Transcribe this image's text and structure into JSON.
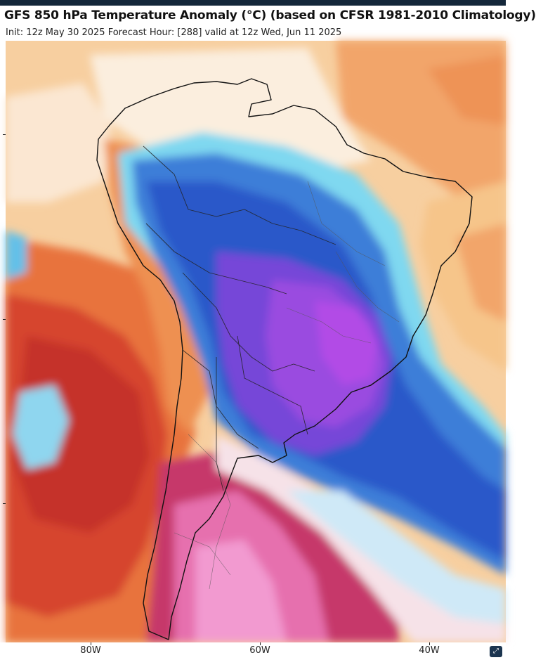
{
  "header": {
    "title": "GFS 850 hPa Temperature Anomaly (°C) (based on CFSR 1981-2010 Climatology)",
    "subtitle": "Init: 12z May 30 2025   Forecast Hour: [288]   valid at 12z Wed, Jun 11 2025"
  },
  "map": {
    "variable": "850 hPa temperature anomaly",
    "region": "South America",
    "x_axis_labels": [
      "80W",
      "60W",
      "40W"
    ]
  },
  "colors": {
    "cold_deep": "#b24ce6",
    "cold_blue": "#2a58c9",
    "cold_light": "#7fd8f0",
    "neutral": "#fbeede",
    "warm_light": "#f6c58a",
    "warm": "#e8733e",
    "warm_deep": "#c5302b",
    "warm_pink": "#e66fae",
    "borders": "#111111"
  },
  "ui": {
    "corner_icon": "expand-icon"
  }
}
